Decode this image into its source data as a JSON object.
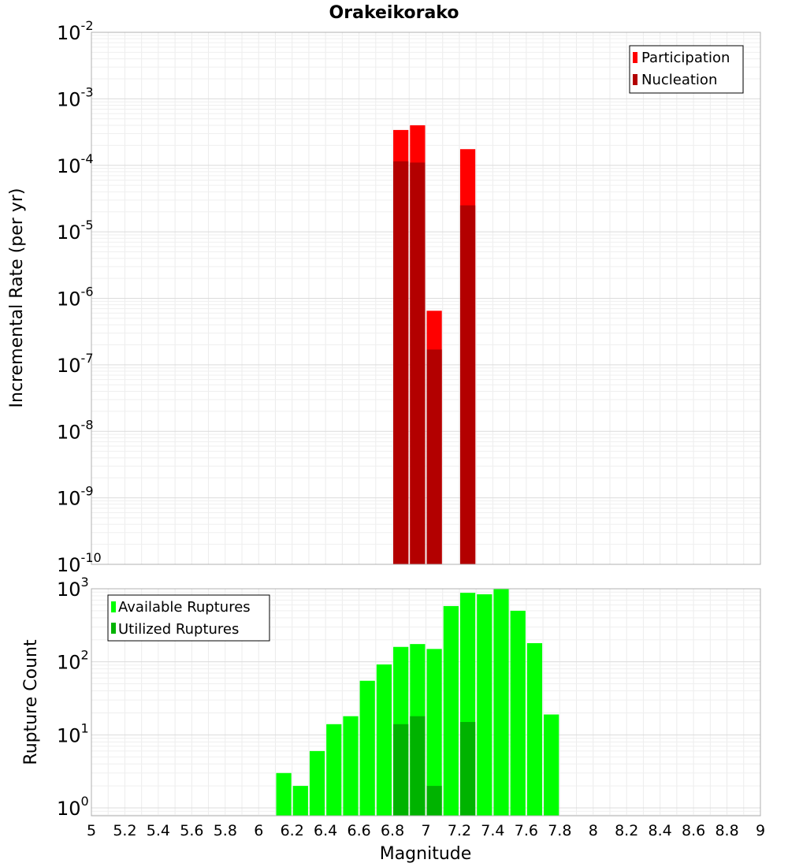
{
  "title": "Orakeikorako",
  "xlabel": "Magnitude",
  "x_ticks": [
    "5",
    "5.2",
    "5.4",
    "5.6",
    "5.8",
    "6",
    "6.2",
    "6.4",
    "6.6",
    "6.8",
    "7",
    "7.2",
    "7.4",
    "7.6",
    "7.8",
    "8",
    "8.2",
    "8.4",
    "8.6",
    "8.8",
    "9"
  ],
  "chart_data": [
    {
      "type": "bar",
      "title": "Orakeikorako",
      "xlabel": "Magnitude",
      "ylabel": "Incremental Rate (per yr)",
      "xlim": [
        5,
        9
      ],
      "ylim": [
        1e-10,
        0.01
      ],
      "y_scale": "log",
      "y_ticks": [
        {
          "base": "10",
          "exp": "-10"
        },
        {
          "base": "10",
          "exp": "-9"
        },
        {
          "base": "10",
          "exp": "-8"
        },
        {
          "base": "10",
          "exp": "-7"
        },
        {
          "base": "10",
          "exp": "-6"
        },
        {
          "base": "10",
          "exp": "-5"
        },
        {
          "base": "10",
          "exp": "-4"
        },
        {
          "base": "10",
          "exp": "-3"
        },
        {
          "base": "10",
          "exp": "-2"
        }
      ],
      "grid": true,
      "legend_position": "top-right",
      "x": [
        6.85,
        6.95,
        7.05,
        7.25
      ],
      "series": [
        {
          "name": "Participation",
          "color": "#ff0000",
          "values": [
            0.00034,
            0.0004,
            6.5e-07,
            0.000175
          ]
        },
        {
          "name": "Nucleation",
          "color": "#b30000",
          "values": [
            0.000115,
            0.00011,
            1.7e-07,
            2.5e-05
          ]
        }
      ]
    },
    {
      "type": "bar",
      "ylabel": "Rupture Count",
      "xlim": [
        5,
        9
      ],
      "ylim": [
        0.78,
        1000
      ],
      "y_scale": "log",
      "y_ticks": [
        {
          "base": "10",
          "exp": "0"
        },
        {
          "base": "10",
          "exp": "1"
        },
        {
          "base": "10",
          "exp": "2"
        },
        {
          "base": "10",
          "exp": "3"
        }
      ],
      "grid": true,
      "legend_position": "top-left",
      "x": [
        6.15,
        6.25,
        6.35,
        6.45,
        6.55,
        6.65,
        6.75,
        6.85,
        6.95,
        7.05,
        7.15,
        7.25,
        7.35,
        7.45,
        7.55,
        7.65,
        7.75
      ],
      "series": [
        {
          "name": "Available Ruptures",
          "color": "#00ff00",
          "values": [
            3,
            2,
            6,
            14,
            18,
            55,
            92,
            160,
            175,
            150,
            580,
            880,
            840,
            1000,
            500,
            180,
            19
          ]
        },
        {
          "name": "Utilized Ruptures",
          "color": "#00b300",
          "values": [
            null,
            null,
            null,
            null,
            null,
            null,
            null,
            14,
            18,
            2,
            null,
            15,
            null,
            null,
            null,
            null,
            null
          ]
        }
      ]
    }
  ]
}
